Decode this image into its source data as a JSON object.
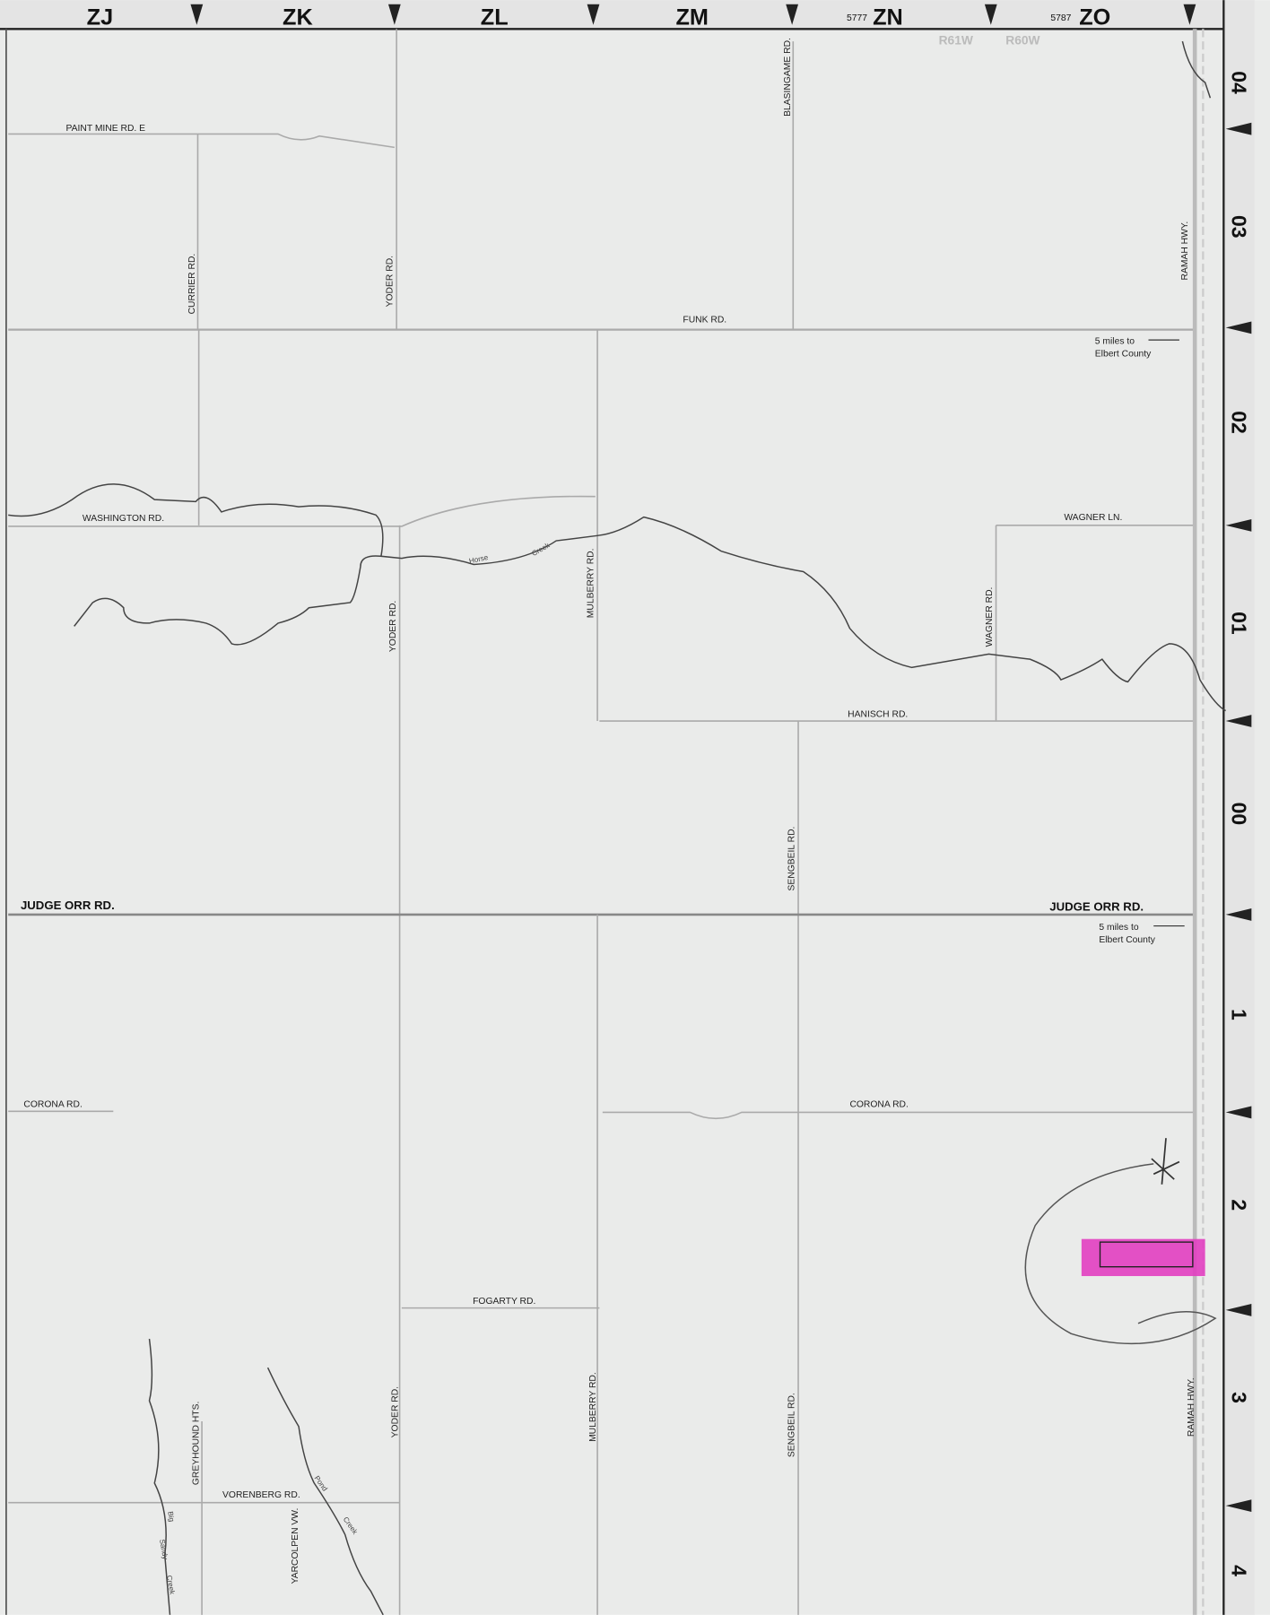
{
  "columns": [
    {
      "label": "ZJ"
    },
    {
      "label": "ZK"
    },
    {
      "label": "ZL"
    },
    {
      "label": "ZM"
    },
    {
      "code": "5777",
      "label": "ZN"
    },
    {
      "code": "5787",
      "label": "ZO"
    }
  ],
  "rows": [
    "04",
    "03",
    "02",
    "01",
    "00",
    "1",
    "2",
    "3",
    "4"
  ],
  "ranges": [
    "R61W",
    "R60W"
  ],
  "roads": [
    "PAINT MINE RD. E",
    "CURRIER RD.",
    "YODER RD.",
    "BLASINGAME RD.",
    "FUNK RD.",
    "RAMAH HWY.",
    "WASHINGTON RD.",
    "WAGNER LN.",
    "MULBERRY RD.",
    "YODER RD.",
    "WAGNER RD.",
    "HANISCH RD.",
    "SENGBEIL RD.",
    "JUDGE ORR RD.",
    "JUDGE ORR RD.",
    "CORONA RD.",
    "CORONA RD.",
    "FOGARTY RD.",
    "YODER RD.",
    "MULBERRY RD.",
    "SENGBEIL RD.",
    "RAMAH HWY.",
    "GREYHOUND HTS.",
    "VORENBERG RD.",
    "YARCOLPEN VW."
  ],
  "water": [
    "Horse",
    "Creek",
    "Big",
    "Sandy",
    "Creek",
    "Pond",
    "Creek"
  ],
  "notes": [
    [
      "5 miles to",
      "Elbert County"
    ],
    [
      "5 miles to",
      "Elbert County"
    ]
  ]
}
